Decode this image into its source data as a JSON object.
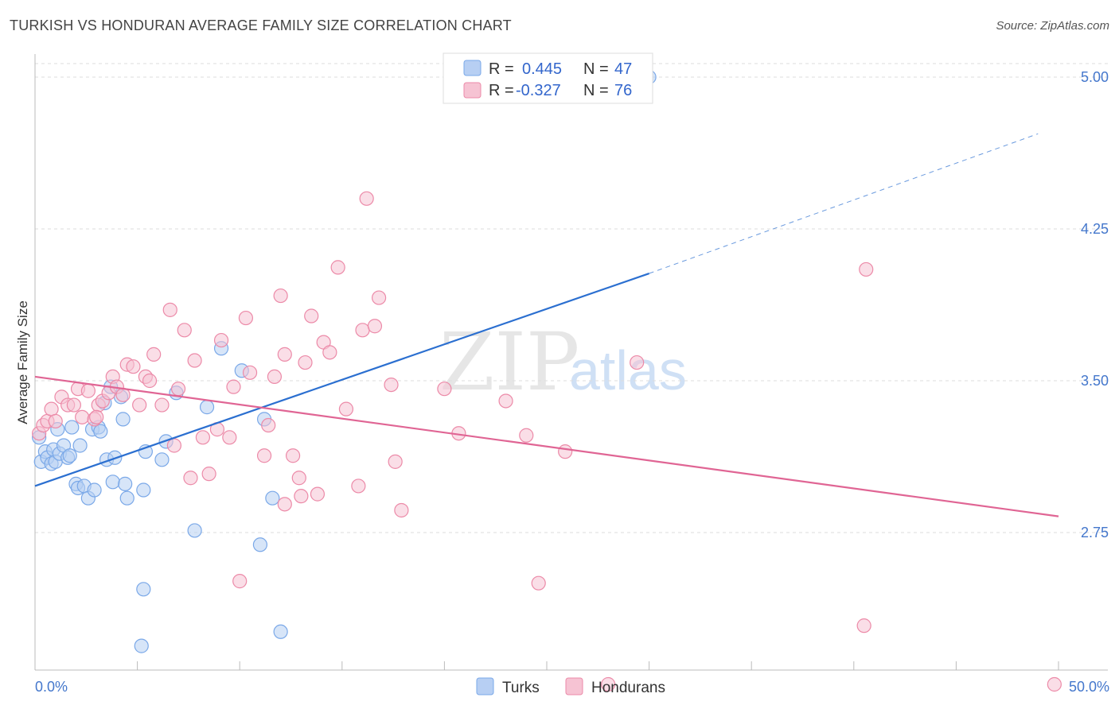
{
  "title": "TURKISH VS HONDURAN AVERAGE FAMILY SIZE CORRELATION CHART",
  "source": "Source: ZipAtlas.com",
  "watermark": {
    "zip": "ZIP",
    "atlas": "atlas"
  },
  "chart_data": {
    "type": "scatter",
    "ylabel": "Average Family Size",
    "xlabel": "",
    "xlim": [
      0,
      50
    ],
    "ylim": [
      2.0,
      5.1
    ],
    "y_ticks": [
      {
        "value": 5.0,
        "label": "5.00"
      },
      {
        "value": 4.25,
        "label": "4.25"
      },
      {
        "value": 3.5,
        "label": "3.50"
      },
      {
        "value": 2.75,
        "label": "2.75"
      }
    ],
    "x_tick_labels": {
      "min": "0.0%",
      "max": "50.0%"
    },
    "legend_top": [
      {
        "name": "Turks",
        "r_label": "R =",
        "r_value": "0.445",
        "n_label": "N =",
        "n_value": "47",
        "color": "#7aa8e8",
        "fill": "#b7cff3"
      },
      {
        "name": "Hondurans",
        "r_label": "R =",
        "r_value": "-0.327",
        "n_label": "N =",
        "n_value": "76",
        "color": "#ec8aa8",
        "fill": "#f6c3d3"
      }
    ],
    "series": [
      {
        "name": "Turks",
        "color": "#7aa8e8",
        "fill": "#b7cff3",
        "trend_color": "#2b6fd0",
        "trend": {
          "x1": 0,
          "y1": 2.98,
          "x2": 30,
          "y2": 4.03,
          "dash_x2": 49,
          "dash_y2": 4.72
        },
        "points": [
          [
            0.3,
            3.1
          ],
          [
            0.5,
            3.15
          ],
          [
            0.6,
            3.12
          ],
          [
            0.8,
            3.09
          ],
          [
            0.9,
            3.16
          ],
          [
            1.0,
            3.1
          ],
          [
            1.1,
            3.26
          ],
          [
            1.2,
            3.14
          ],
          [
            1.4,
            3.18
          ],
          [
            1.6,
            3.12
          ],
          [
            1.7,
            3.13
          ],
          [
            1.8,
            3.27
          ],
          [
            2.0,
            2.99
          ],
          [
            2.1,
            2.97
          ],
          [
            2.2,
            3.18
          ],
          [
            2.4,
            2.98
          ],
          [
            2.6,
            2.92
          ],
          [
            2.8,
            3.26
          ],
          [
            2.9,
            2.96
          ],
          [
            3.1,
            3.27
          ],
          [
            3.2,
            3.25
          ],
          [
            3.4,
            3.39
          ],
          [
            3.5,
            3.11
          ],
          [
            3.7,
            3.47
          ],
          [
            3.8,
            3.0
          ],
          [
            3.9,
            3.12
          ],
          [
            4.2,
            3.42
          ],
          [
            4.3,
            3.31
          ],
          [
            4.4,
            2.99
          ],
          [
            4.5,
            2.92
          ],
          [
            5.3,
            2.96
          ],
          [
            5.4,
            3.15
          ],
          [
            6.2,
            3.11
          ],
          [
            6.4,
            3.2
          ],
          [
            6.9,
            3.44
          ],
          [
            7.8,
            2.76
          ],
          [
            8.4,
            3.37
          ],
          [
            9.1,
            3.66
          ],
          [
            10.1,
            3.55
          ],
          [
            11.0,
            2.69
          ],
          [
            11.2,
            3.31
          ],
          [
            11.6,
            2.92
          ],
          [
            5.3,
            2.47
          ],
          [
            5.2,
            2.19
          ],
          [
            12.0,
            2.26
          ],
          [
            30.0,
            5.0
          ],
          [
            0.2,
            3.22
          ]
        ]
      },
      {
        "name": "Hondurans",
        "color": "#ec8aa8",
        "fill": "#f6c3d3",
        "trend_color": "#e06594",
        "trend": {
          "x1": 0,
          "y1": 3.52,
          "x2": 50,
          "y2": 2.83
        },
        "points": [
          [
            0.2,
            3.24
          ],
          [
            0.4,
            3.28
          ],
          [
            0.6,
            3.3
          ],
          [
            0.8,
            3.36
          ],
          [
            1.0,
            3.3
          ],
          [
            1.3,
            3.42
          ],
          [
            1.6,
            3.38
          ],
          [
            1.9,
            3.38
          ],
          [
            2.1,
            3.46
          ],
          [
            2.3,
            3.32
          ],
          [
            2.6,
            3.45
          ],
          [
            2.9,
            3.31
          ],
          [
            3.1,
            3.38
          ],
          [
            3.3,
            3.4
          ],
          [
            3.6,
            3.44
          ],
          [
            3.8,
            3.52
          ],
          [
            4.0,
            3.47
          ],
          [
            4.3,
            3.43
          ],
          [
            4.5,
            3.58
          ],
          [
            4.8,
            3.57
          ],
          [
            5.1,
            3.38
          ],
          [
            5.4,
            3.52
          ],
          [
            5.6,
            3.5
          ],
          [
            5.8,
            3.63
          ],
          [
            6.2,
            3.38
          ],
          [
            6.6,
            3.85
          ],
          [
            6.8,
            3.18
          ],
          [
            7.0,
            3.46
          ],
          [
            7.3,
            3.75
          ],
          [
            7.6,
            3.02
          ],
          [
            7.8,
            3.6
          ],
          [
            8.2,
            3.22
          ],
          [
            8.5,
            3.04
          ],
          [
            8.9,
            3.26
          ],
          [
            9.1,
            3.7
          ],
          [
            9.5,
            3.22
          ],
          [
            9.7,
            3.47
          ],
          [
            10.3,
            3.81
          ],
          [
            10.5,
            3.54
          ],
          [
            11.2,
            3.13
          ],
          [
            11.4,
            3.28
          ],
          [
            11.7,
            3.52
          ],
          [
            12.0,
            3.92
          ],
          [
            12.2,
            3.63
          ],
          [
            12.6,
            3.13
          ],
          [
            12.9,
            3.02
          ],
          [
            13.2,
            3.59
          ],
          [
            13.5,
            3.82
          ],
          [
            13.8,
            2.94
          ],
          [
            14.1,
            3.69
          ],
          [
            14.4,
            3.64
          ],
          [
            14.8,
            4.06
          ],
          [
            15.2,
            3.36
          ],
          [
            15.8,
            2.98
          ],
          [
            16.0,
            3.75
          ],
          [
            16.2,
            4.4
          ],
          [
            16.6,
            3.77
          ],
          [
            16.8,
            3.91
          ],
          [
            17.4,
            3.48
          ],
          [
            17.6,
            3.1
          ],
          [
            17.9,
            2.86
          ],
          [
            20.0,
            3.46
          ],
          [
            20.7,
            3.24
          ],
          [
            23.0,
            3.4
          ],
          [
            24.0,
            3.23
          ],
          [
            24.6,
            2.5
          ],
          [
            25.9,
            3.15
          ],
          [
            28.0,
            2.0
          ],
          [
            29.4,
            3.59
          ],
          [
            40.6,
            4.05
          ],
          [
            40.5,
            2.29
          ],
          [
            49.8,
            2.0
          ],
          [
            10.0,
            2.51
          ],
          [
            12.2,
            2.89
          ],
          [
            13.0,
            2.93
          ],
          [
            3.0,
            3.32
          ]
        ]
      }
    ],
    "bottom_legend": [
      {
        "name": "Turks",
        "color": "#7aa8e8",
        "fill": "#b7cff3"
      },
      {
        "name": "Hondurans",
        "color": "#ec8aa8",
        "fill": "#f6c3d3"
      }
    ]
  }
}
